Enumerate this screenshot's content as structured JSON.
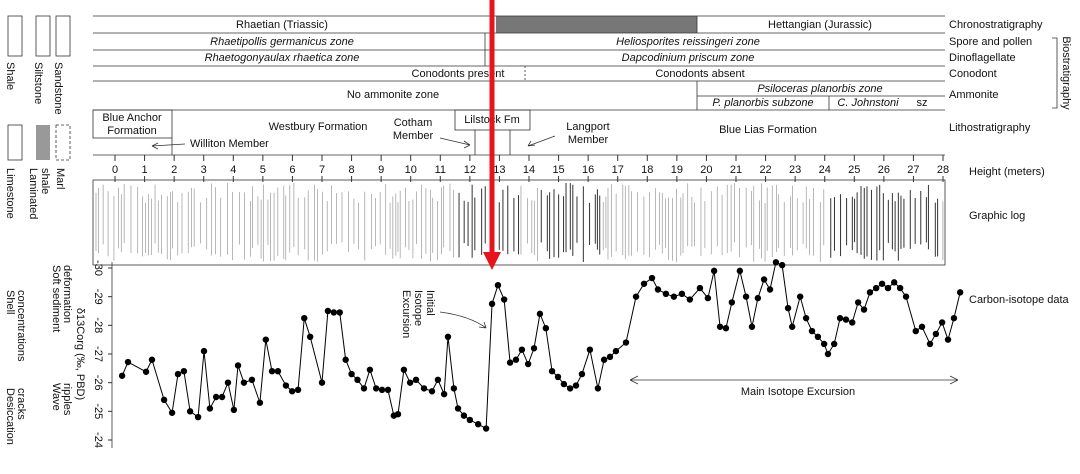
{
  "chart_data": {
    "type": "line",
    "xlabel": "Height (meters)",
    "ylabel": "δ13Corg (‰, PBD)",
    "xlim": [
      0,
      28
    ],
    "xticks": [
      0,
      1,
      2,
      3,
      4,
      5,
      6,
      7,
      8,
      9,
      10,
      11,
      12,
      13,
      14,
      15,
      16,
      17,
      18,
      19,
      20,
      21,
      22,
      23,
      24,
      25,
      26,
      27,
      28
    ],
    "ylim": [
      -24,
      -30
    ],
    "yticks": [
      -30,
      -29,
      -28,
      -27,
      -26,
      -25,
      -24
    ],
    "x": [
      0.24,
      0.44,
      1.05,
      1.25,
      1.66,
      1.93,
      2.13,
      2.33,
      2.54,
      2.81,
      3.01,
      3.21,
      3.42,
      3.62,
      3.82,
      4.02,
      4.16,
      4.36,
      4.63,
      4.9,
      5.1,
      5.31,
      5.51,
      5.78,
      5.99,
      6.19,
      6.4,
      6.6,
      7.0,
      7.2,
      7.4,
      7.6,
      7.8,
      8.0,
      8.2,
      8.42,
      8.62,
      8.83,
      9.03,
      9.23,
      9.43,
      9.57,
      9.77,
      9.98,
      10.18,
      10.45,
      10.72,
      10.92,
      11.13,
      11.26,
      11.46,
      11.6,
      11.8,
      12.0,
      12.28,
      12.55,
      12.75,
      12.95,
      13.16,
      13.36,
      13.56,
      13.76,
      13.97,
      14.17,
      14.37,
      14.57,
      14.78,
      14.98,
      15.18,
      15.39,
      15.59,
      15.79,
      16.06,
      16.33,
      16.54,
      16.74,
      16.94,
      17.28,
      17.62,
      17.89,
      18.16,
      18.36,
      18.63,
      18.9,
      19.17,
      19.44,
      19.78,
      20.05,
      20.26,
      20.46,
      20.66,
      20.86,
      21.13,
      21.34,
      21.54,
      21.74,
      21.95,
      22.15,
      22.35,
      22.56,
      22.76,
      22.9,
      23.17,
      23.37,
      23.57,
      23.77,
      23.98,
      24.11,
      24.32,
      24.52,
      24.72,
      24.93,
      25.13,
      25.33,
      25.53,
      25.74,
      25.94,
      26.14,
      26.35,
      26.55,
      26.75,
      27.08,
      27.29,
      27.56,
      27.76,
      27.97,
      28.17,
      28.37,
      28.58
    ],
    "series": [
      {
        "name": "Carbon-isotope data",
        "color": "#000000",
        "values": [
          -26.24,
          -26.72,
          -26.38,
          -26.8,
          -25.4,
          -24.95,
          -26.3,
          -26.4,
          -25.0,
          -24.8,
          -27.1,
          -25.1,
          -25.5,
          -25.5,
          -26.0,
          -25.05,
          -26.6,
          -26.0,
          -26.1,
          -25.3,
          -27.5,
          -26.4,
          -26.4,
          -25.9,
          -25.7,
          -25.75,
          -28.25,
          -27.6,
          -26.0,
          -28.5,
          -28.45,
          -28.45,
          -26.8,
          -26.3,
          -26.1,
          -25.8,
          -26.45,
          -25.8,
          -25.75,
          -25.75,
          -24.85,
          -24.9,
          -26.45,
          -26.0,
          -26.1,
          -25.8,
          -25.7,
          -26.1,
          -25.6,
          -27.6,
          -25.8,
          -25.1,
          -24.85,
          -24.7,
          -24.55,
          -24.4,
          -28.75,
          -29.4,
          -28.9,
          -26.7,
          -26.8,
          -27.15,
          -26.65,
          -27.2,
          -28.4,
          -27.9,
          -26.4,
          -26.2,
          -25.95,
          -25.8,
          -25.9,
          -26.3,
          -27.15,
          -25.8,
          -26.8,
          -26.9,
          -27.1,
          -27.4,
          -29.0,
          -29.45,
          -29.65,
          -29.25,
          -29.1,
          -29.0,
          -29.1,
          -28.9,
          -29.3,
          -28.95,
          -29.9,
          -27.95,
          -27.9,
          -28.8,
          -29.9,
          -29.0,
          -27.95,
          -28.95,
          -29.6,
          -29.25,
          -30.2,
          -30.1,
          -28.6,
          -27.95,
          -29.0,
          -28.25,
          -27.8,
          -27.6,
          -27.35,
          -27.0,
          -27.35,
          -28.25,
          -28.2,
          -28.1,
          -28.8,
          -28.55,
          -29.15,
          -29.3,
          -29.45,
          -29.3,
          -29.5,
          -29.3,
          -29.0,
          -27.8,
          -27.95,
          -27.35,
          -27.7,
          -28.1,
          -27.5,
          -28.25,
          -29.15
        ]
      }
    ],
    "annotations": {
      "initial": [
        "Initial",
        "Isotope",
        "Excursion"
      ],
      "main": "Main Isotope Excursion"
    }
  },
  "row_labels": {
    "chrono": "Chronostratigraphy",
    "spore": "Spore and pollen",
    "dino": "Dinoflagellate",
    "conodont": "Conodont",
    "ammonite": "Ammonite",
    "bio": "Biostratigraphy",
    "litho": "Lithostratigraphy",
    "log": "Graphic log"
  },
  "stratigraphy": {
    "rhaetian": "Rhaetian (Triassic)",
    "hettangian": "Hettangian (Jurassic)",
    "spore_1": "Rhaetipollis germanicus zone",
    "spore_2": "Heliosporites reissingeri zone",
    "dino_1": "Rhaetogonyaulax rhaetica zone",
    "dino_2": "Dapcodinium priscum zone",
    "cono_1": "Conodonts present",
    "cono_2": "Conodonts absent",
    "amm_1": "No ammonite zone",
    "amm_2": "Psiloceras planorbis zone",
    "amm_3": "P. planorbis subzone",
    "amm_4": "C. Johnstoni",
    "amm_5": "sz",
    "blue_anchor": [
      "Blue Anchor",
      "Formation"
    ],
    "williton": "Williton Member",
    "westbury": "Westbury Formation",
    "cotham": [
      "Cotham",
      "Member"
    ],
    "lilstock": "Lilstock Fm",
    "langport": [
      "Langport",
      "Member"
    ],
    "blue_lias": "Blue Lias Formation"
  },
  "lithology_legend": {
    "shale": "Shale",
    "siltstone": "Siltstone",
    "sandstone": "Sandstone",
    "limestone": "Limestone",
    "laminated": [
      "Laminated",
      "shale"
    ],
    "marl": "Marl",
    "shell": [
      "Shell",
      "concentrations"
    ],
    "soft": [
      "Soft sediment",
      "deformation"
    ],
    "ripples": [
      "Wave",
      "ripples"
    ],
    "cracks": [
      "Desiccation",
      "cracks"
    ]
  }
}
